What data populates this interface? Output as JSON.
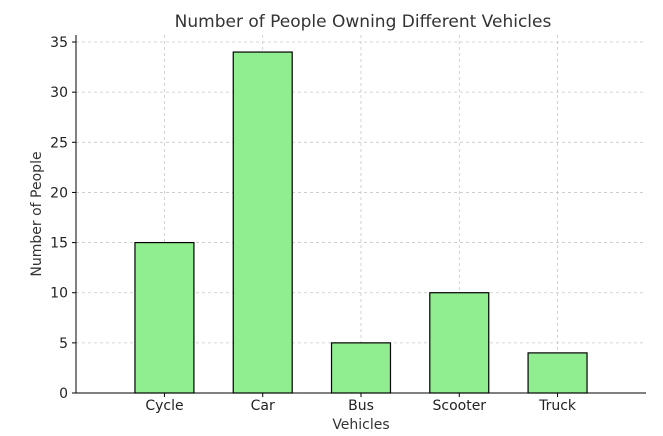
{
  "chart_data": {
    "type": "bar",
    "title": "Number of People Owning Different Vehicles",
    "xlabel": "Vehicles",
    "ylabel": "Number of People",
    "categories": [
      "Cycle",
      "Car",
      "Bus",
      "Scooter",
      "Truck"
    ],
    "values": [
      15,
      34,
      5,
      10,
      4
    ],
    "ylim": [
      0,
      35.7
    ],
    "yticks": [
      0,
      5,
      10,
      15,
      20,
      25,
      30,
      35
    ],
    "grid": true,
    "bar_color": "#90ee90",
    "edge_color": "#000000"
  }
}
